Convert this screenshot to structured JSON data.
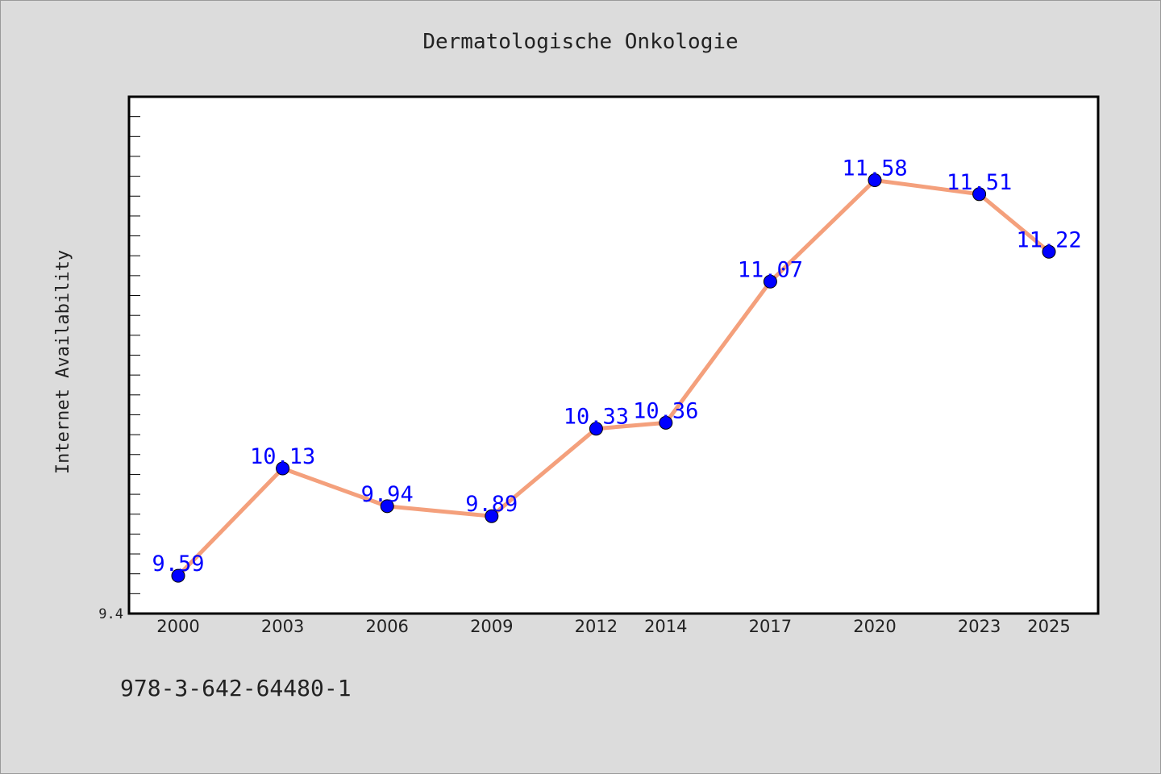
{
  "chart_data": {
    "type": "line",
    "title": "Dermatologische Onkologie",
    "xlabel": "",
    "ylabel": "Internet Availability",
    "categories": [
      "2000",
      "2003",
      "2006",
      "2009",
      "2012",
      "2014",
      "2017",
      "2020",
      "2023",
      "2025"
    ],
    "series": [
      {
        "values": [
          9.59,
          10.13,
          9.94,
          9.89,
          10.33,
          10.36,
          11.07,
          11.58,
          11.51,
          11.22
        ],
        "data_labels": [
          "9.59",
          "10.13",
          "9.94",
          "9.89",
          "10.33",
          "10.36",
          "11.07",
          "11.58",
          "11.51",
          "11.22"
        ]
      }
    ],
    "ylim": [
      9.4,
      12.0
    ],
    "y_tick_label": "9.4",
    "line_color": "#f4a07c",
    "marker_color": "#0000ff",
    "label_color": "#0000ff",
    "grid": false,
    "legend": "none"
  },
  "footer_text": "978-3-642-64480-1"
}
